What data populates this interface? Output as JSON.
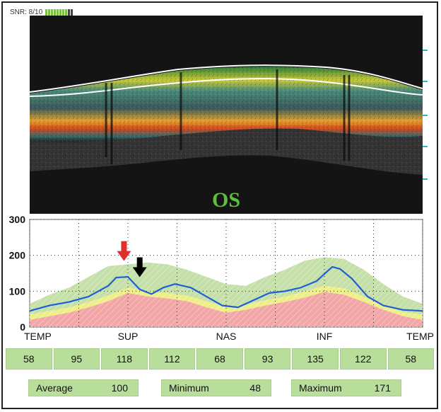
{
  "snr": {
    "label": "SNR: 8/10",
    "segments_total": 10,
    "segments_filled": 8,
    "color_filled": "#7ac043",
    "color_empty": "#444444"
  },
  "scan": {
    "eye": "OS",
    "eye_color": "#5fbf3a"
  },
  "chart_data": {
    "type": "line",
    "yticks": [
      0,
      100,
      200,
      300
    ],
    "ylim": [
      0,
      300
    ],
    "xlim": [
      0,
      100
    ],
    "xlabels": [
      "TEMP",
      "SUP",
      "NAS",
      "INF",
      "TEMP"
    ],
    "xlabel_positions": [
      0,
      25,
      50,
      75,
      100
    ],
    "grid": true,
    "series": [
      {
        "role": "thickness",
        "color": "#1f5fd6",
        "x": [
          0,
          5,
          10,
          15,
          20,
          22,
          25,
          28,
          31,
          34,
          37,
          41,
          45,
          49,
          53,
          57,
          61,
          65,
          69,
          73,
          77,
          79,
          82,
          86,
          90,
          95,
          100
        ],
        "y": [
          45,
          60,
          70,
          85,
          115,
          138,
          140,
          105,
          92,
          110,
          120,
          110,
          85,
          60,
          55,
          75,
          95,
          100,
          110,
          128,
          168,
          162,
          135,
          85,
          60,
          48,
          45
        ]
      }
    ],
    "bands": [
      {
        "role": "normal-upper",
        "color": "#c4e0a8",
        "x": [
          0,
          5,
          10,
          15,
          20,
          25,
          30,
          35,
          40,
          45,
          50,
          55,
          60,
          65,
          70,
          75,
          80,
          85,
          90,
          95,
          100
        ],
        "y": [
          65,
          90,
          110,
          140,
          170,
          175,
          180,
          175,
          160,
          140,
          120,
          115,
          140,
          160,
          185,
          195,
          190,
          160,
          120,
          85,
          65
        ]
      },
      {
        "role": "borderline",
        "color": "#eeee88",
        "x": [
          0,
          5,
          10,
          15,
          20,
          25,
          30,
          35,
          40,
          45,
          50,
          55,
          60,
          65,
          70,
          75,
          80,
          85,
          90,
          95,
          100
        ],
        "y": [
          35,
          45,
          55,
          70,
          88,
          110,
          100,
          95,
          88,
          72,
          55,
          62,
          75,
          85,
          100,
          115,
          108,
          85,
          60,
          42,
          35
        ]
      },
      {
        "role": "outside-normal",
        "color": "#f2a6a6",
        "x": [
          0,
          5,
          10,
          15,
          20,
          25,
          30,
          35,
          40,
          45,
          50,
          55,
          60,
          65,
          70,
          75,
          80,
          85,
          90,
          95,
          100
        ],
        "y": [
          20,
          30,
          40,
          55,
          72,
          95,
          85,
          80,
          72,
          55,
          40,
          48,
          60,
          70,
          82,
          98,
          90,
          70,
          48,
          30,
          20
        ]
      }
    ],
    "annotations": [
      {
        "type": "arrow",
        "color": "#e0302a",
        "x": 24,
        "y": 200
      },
      {
        "type": "arrow",
        "color": "#000000",
        "x": 28,
        "y": 155
      }
    ]
  },
  "sectors": [
    "58",
    "95",
    "118",
    "112",
    "68",
    "93",
    "135",
    "122",
    "58"
  ],
  "stats": {
    "average_label": "Average",
    "average_value": "100",
    "minimum_label": "Minimum",
    "minimum_value": "48",
    "maximum_label": "Maximum",
    "maximum_value": "171"
  }
}
